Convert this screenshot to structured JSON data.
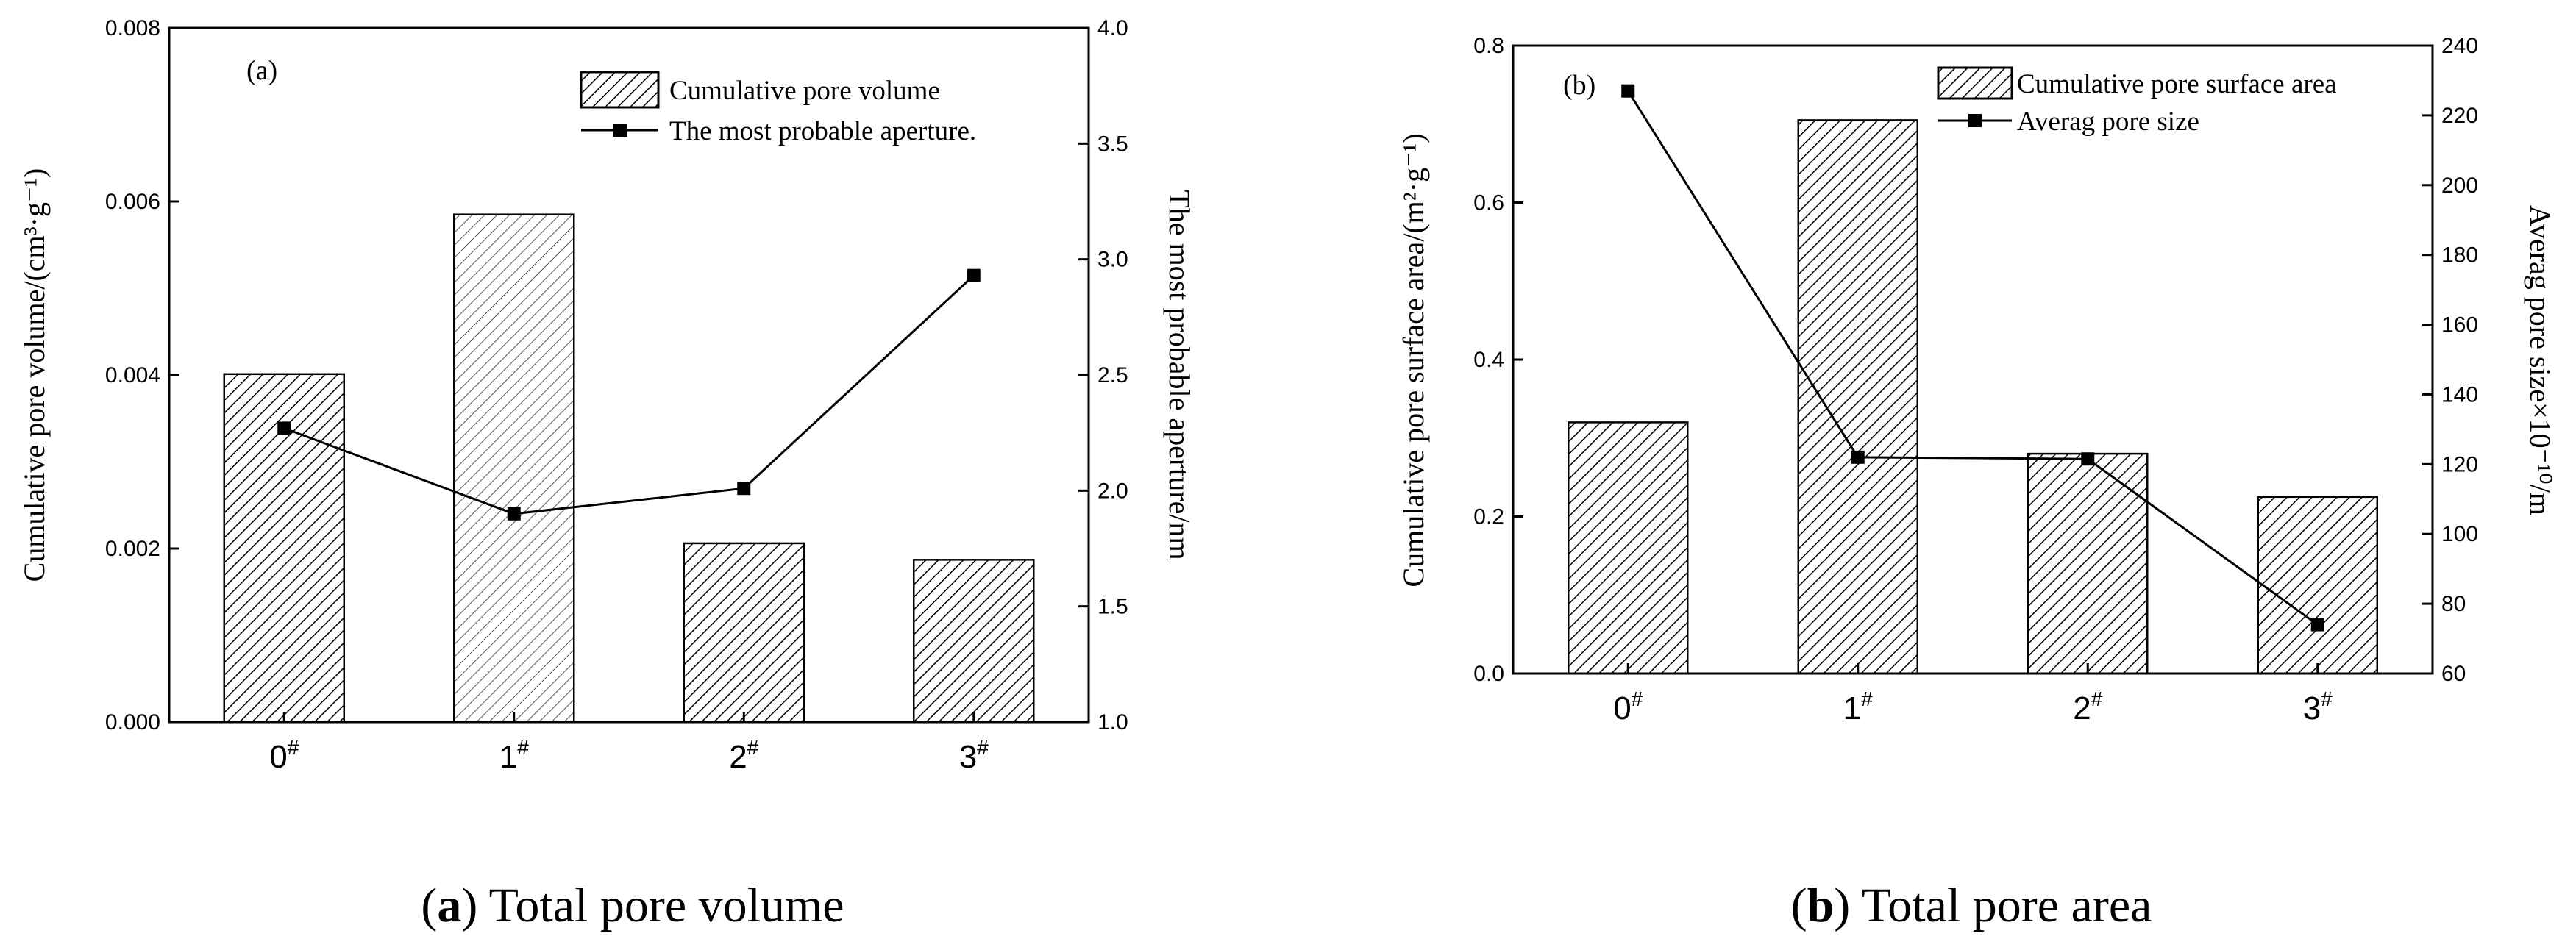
{
  "chart_data": [
    {
      "panel": "a",
      "type": "bar",
      "tag": "(a)",
      "categories": [
        "0",
        "1",
        "2",
        "3"
      ],
      "category_suffix": "#",
      "series": [
        {
          "name": "Cumulative pore volume",
          "kind": "bar",
          "axis": "left",
          "values": [
            0.00401,
            0.00585,
            0.00206,
            0.00187
          ]
        },
        {
          "name": "The most probable aperture.",
          "kind": "line",
          "axis": "right",
          "values": [
            2.27,
            1.9,
            2.01,
            2.93
          ]
        }
      ],
      "ylabel": "Cumulative pore volume/(cm³·g⁻¹)",
      "ylim": [
        0,
        0.008
      ],
      "yticks": [
        "0.000",
        "0.002",
        "0.004",
        "0.006",
        "0.008"
      ],
      "y2label": "The most probable aperture/nm",
      "y2lim": [
        1.0,
        4.0
      ],
      "y2ticks": [
        "1.0",
        "1.5",
        "2.0",
        "2.5",
        "3.0",
        "3.5",
        "4.0"
      ],
      "caption_label": "a",
      "caption_text": "Total pore volume"
    },
    {
      "panel": "b",
      "type": "bar",
      "tag": "(b)",
      "categories": [
        "0",
        "1",
        "2",
        "3"
      ],
      "category_suffix": "#",
      "series": [
        {
          "name": "Cumulative pore surface area",
          "kind": "bar",
          "axis": "left",
          "values": [
            0.32,
            0.705,
            0.28,
            0.225
          ]
        },
        {
          "name": "Averag pore size",
          "kind": "line",
          "axis": "right",
          "values": [
            227,
            122,
            121.5,
            74
          ]
        }
      ],
      "ylabel": "Cumulative pore surface area/(m²·g⁻¹)",
      "ylim": [
        0,
        0.8
      ],
      "yticks": [
        "0.0",
        "0.2",
        "0.4",
        "0.6",
        "0.8"
      ],
      "y2label": "Averag pore size×10⁻¹⁰/m",
      "y2lim": [
        60,
        240
      ],
      "y2ticks": [
        "60",
        "80",
        "100",
        "120",
        "140",
        "160",
        "180",
        "200",
        "220",
        "240"
      ],
      "caption_label": "b",
      "caption_text": "Total pore area"
    }
  ]
}
